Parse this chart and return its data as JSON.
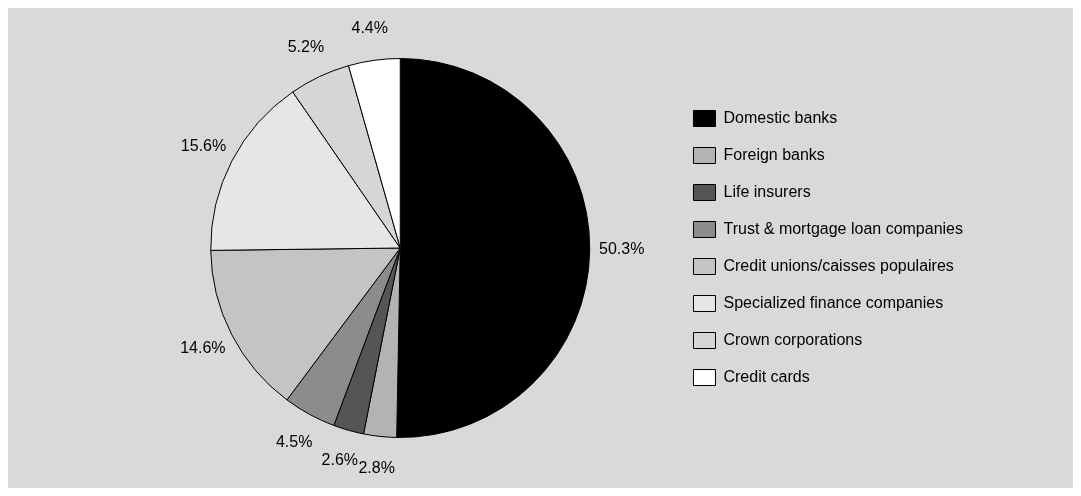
{
  "chart_data": {
    "type": "pie",
    "categories": [
      "Domestic banks",
      "Foreign banks",
      "Life insurers",
      "Trust & mortgage loan companies",
      "Credit unions/caisses populaires",
      "Specialized finance companies",
      "Crown corporations",
      "Credit cards"
    ],
    "values": [
      50.3,
      2.8,
      2.6,
      4.5,
      14.6,
      15.6,
      5.2,
      4.4
    ],
    "colors": [
      "#000000",
      "#b3b3b3",
      "#555555",
      "#8c8c8c",
      "#c4c4c4",
      "#e6e6e6",
      "#d6d6d6",
      "#ffffff"
    ],
    "value_labels": [
      "50.3%",
      "2.8%",
      "2.6%",
      "4.5%",
      "14.6%",
      "15.6%",
      "5.2%",
      "4.4%"
    ],
    "legend": "right"
  }
}
